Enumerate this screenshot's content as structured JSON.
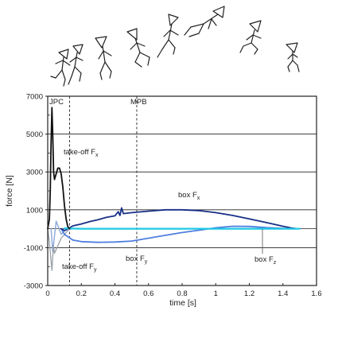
{
  "chart_data": {
    "type": "line",
    "xlabel": "time [s]",
    "ylabel": "force [N]",
    "xlim": [
      0,
      1.6
    ],
    "ylim": [
      -3000,
      7000
    ],
    "xticks": [
      0,
      0.2,
      0.4,
      0.6,
      0.8,
      1,
      1.2,
      1.4,
      1.6
    ],
    "xtick_labels": [
      "0",
      "0.2",
      "0.4",
      "0.6",
      "0.8",
      "1",
      "1.2",
      "1.4",
      "1.6"
    ],
    "yticks": [
      -3000,
      -1000,
      1000,
      3000,
      5000,
      7000
    ],
    "ytick_labels": [
      "-3000",
      "-1000",
      "1000",
      "3000",
      "5000",
      "7000"
    ],
    "grid": "horizontal",
    "vlines": [
      {
        "x": 0.13,
        "label": "",
        "style": "dashed"
      },
      {
        "x": 0.53,
        "label": "MPB",
        "style": "dashed"
      }
    ],
    "annotations": [
      {
        "key": "jpc",
        "text": "JPC"
      },
      {
        "key": "takeoff_fx",
        "text": "take-off F",
        "subscript": "x"
      },
      {
        "key": "takeoff_fy",
        "text": "take-off F",
        "subscript": "y"
      },
      {
        "key": "box_fx",
        "text": "box F",
        "subscript": "x"
      },
      {
        "key": "box_fy",
        "text": "box F",
        "subscript": "y"
      },
      {
        "key": "box_fz",
        "text": "box F",
        "subscript": "z"
      }
    ],
    "series": [
      {
        "key": "takeoff_fx",
        "color": "#111111",
        "width": 1.8,
        "x": [
          0,
          0.01,
          0.015,
          0.02,
          0.025,
          0.03,
          0.035,
          0.04,
          0.05,
          0.06,
          0.07,
          0.08,
          0.09,
          0.1,
          0.11,
          0.12,
          0.13
        ],
        "y": [
          0,
          500,
          2000,
          4500,
          6400,
          5000,
          3000,
          2600,
          2900,
          3200,
          3200,
          2900,
          2200,
          1200,
          500,
          100,
          0
        ]
      },
      {
        "key": "takeoff_fy",
        "color": "#9aa0a8",
        "width": 1.3,
        "x": [
          0,
          0.01,
          0.02,
          0.025,
          0.03,
          0.035,
          0.04,
          0.05,
          0.06,
          0.07,
          0.08,
          0.1,
          0.12,
          0.13
        ],
        "y": [
          0,
          -700,
          -1700,
          -2200,
          -1500,
          -900,
          -1300,
          -1100,
          -900,
          -700,
          -500,
          -300,
          -100,
          0
        ]
      },
      {
        "key": "box_fx",
        "color": "#172f86",
        "width": 1.8,
        "x": [
          0.08,
          0.1,
          0.13,
          0.15,
          0.2,
          0.25,
          0.3,
          0.35,
          0.4,
          0.42,
          0.43,
          0.44,
          0.45,
          0.5,
          0.6,
          0.7,
          0.8,
          0.9,
          1.0,
          1.1,
          1.2,
          1.3,
          1.4,
          1.45,
          1.48,
          1.5
        ],
        "y": [
          0,
          -100,
          50,
          150,
          250,
          380,
          480,
          600,
          680,
          900,
          700,
          1100,
          800,
          850,
          930,
          1000,
          1000,
          960,
          850,
          700,
          520,
          330,
          130,
          40,
          10,
          0
        ]
      },
      {
        "key": "box_fy",
        "color": "#4f7fe0",
        "width": 1.8,
        "x": [
          0.08,
          0.1,
          0.15,
          0.2,
          0.3,
          0.4,
          0.5,
          0.6,
          0.7,
          0.8,
          0.9,
          1.0,
          1.1,
          1.2,
          1.3,
          1.4,
          1.45,
          1.5
        ],
        "y": [
          0,
          -300,
          -600,
          -680,
          -720,
          -700,
          -650,
          -500,
          -350,
          -200,
          -80,
          50,
          130,
          120,
          60,
          20,
          5,
          0
        ]
      },
      {
        "key": "box_fz",
        "color": "#8aa7d6",
        "width": 1.4,
        "x": [
          0.02,
          0.03,
          0.05,
          0.08,
          0.1,
          0.15,
          0.2,
          0.4,
          0.6,
          0.8,
          1.0,
          1.2,
          1.4,
          1.5
        ],
        "y": [
          0,
          -1200,
          400,
          -300,
          -100,
          0,
          0,
          0,
          0,
          0,
          0,
          0,
          0,
          0
        ]
      },
      {
        "key": "flat",
        "color": "#1fc8e6",
        "width": 2.2,
        "x": [
          0.1,
          0.2,
          0.4,
          0.6,
          0.8,
          1.0,
          1.2,
          1.4,
          1.5
        ],
        "y": [
          20,
          0,
          0,
          0,
          0,
          0,
          0,
          0,
          0
        ]
      }
    ]
  }
}
